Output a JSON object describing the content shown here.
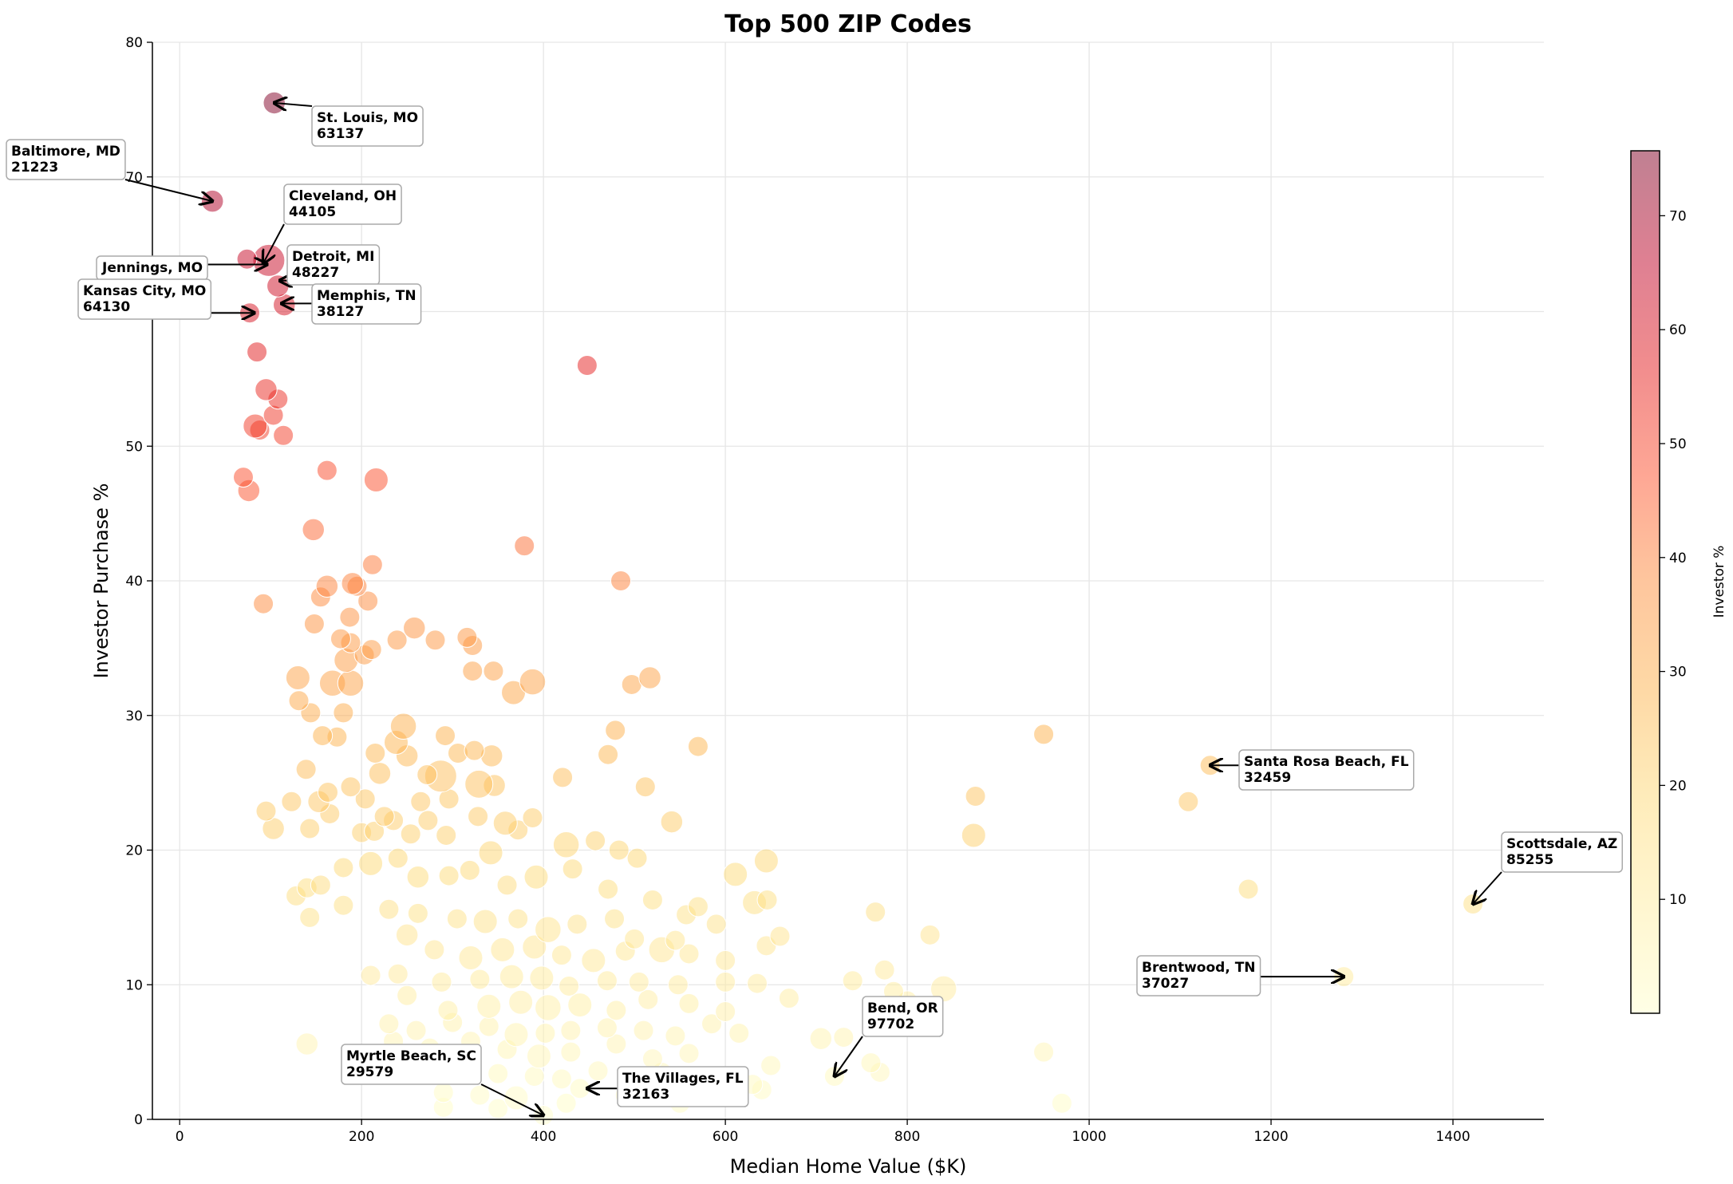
{
  "chart_data": {
    "type": "scatter",
    "title": "Top 500 ZIP Codes",
    "xlabel": "Median Home Value ($K)",
    "ylabel": "Investor Purchase %",
    "xlim": [
      -30,
      1500
    ],
    "ylim": [
      0,
      80
    ],
    "xticks": [
      0,
      200,
      400,
      600,
      800,
      1000,
      1200,
      1400
    ],
    "yticks": [
      0,
      10,
      20,
      30,
      40,
      50,
      60,
      70,
      80
    ],
    "grid": true,
    "colorbar": {
      "label": "Investor %",
      "range": [
        0,
        75.7
      ],
      "ticks": [
        10,
        20,
        30,
        40,
        50,
        60,
        70
      ],
      "colormap": "YlOrRd",
      "alpha": 0.5
    },
    "color_encoding": "Investor % (same as y)",
    "point_format": [
      "median_home_value_k",
      "investor_pct",
      "relative_size"
    ],
    "points": [
      [
        104,
        75.5,
        1.1
      ],
      [
        36,
        68.2,
        1.1
      ],
      [
        98,
        63.8,
        1.6
      ],
      [
        74,
        63.9,
        1
      ],
      [
        108,
        61.9,
        1.1
      ],
      [
        115,
        60.5,
        1.1
      ],
      [
        77,
        59.9,
        1
      ],
      [
        448,
        56,
        1
      ],
      [
        85,
        57,
        1
      ],
      [
        95,
        54.2,
        1.1
      ],
      [
        108,
        53.5,
        1
      ],
      [
        103,
        52.3,
        1
      ],
      [
        83,
        51.5,
        1.2
      ],
      [
        88,
        51.2,
        1
      ],
      [
        114,
        50.8,
        1
      ],
      [
        70,
        47.7,
        1
      ],
      [
        76,
        46.7,
        1.1
      ],
      [
        162,
        48.2,
        1
      ],
      [
        216,
        47.5,
        1.2
      ],
      [
        147,
        43.8,
        1.1
      ],
      [
        379,
        42.6,
        1
      ],
      [
        485,
        40,
        1
      ],
      [
        92,
        38.3,
        1
      ],
      [
        162,
        39.6,
        1.1
      ],
      [
        155,
        38.8,
        1
      ],
      [
        212,
        41.2,
        1
      ],
      [
        190,
        39.8,
        1.1
      ],
      [
        195,
        39.6,
        1
      ],
      [
        187,
        37.3,
        1
      ],
      [
        207,
        38.5,
        1
      ],
      [
        148,
        36.8,
        1
      ],
      [
        258,
        36.5,
        1.1
      ],
      [
        239,
        35.6,
        1
      ],
      [
        281,
        35.6,
        1
      ],
      [
        316,
        35.8,
        1
      ],
      [
        322,
        35.2,
        1
      ],
      [
        177,
        35.7,
        1
      ],
      [
        188,
        35.4,
        1
      ],
      [
        211,
        34.9,
        1
      ],
      [
        183,
        34.1,
        1.2
      ],
      [
        203,
        34.5,
        1
      ],
      [
        345,
        33.3,
        1
      ],
      [
        322,
        33.3,
        1
      ],
      [
        517,
        32.8,
        1.1
      ],
      [
        497,
        32.3,
        1
      ],
      [
        130,
        32.8,
        1.2
      ],
      [
        168,
        32.4,
        1.3
      ],
      [
        188,
        32.4,
        1.3
      ],
      [
        388,
        32.5,
        1.3
      ],
      [
        367,
        31.7,
        1.2
      ],
      [
        131,
        31.1,
        1
      ],
      [
        144,
        30.2,
        1
      ],
      [
        180,
        30.2,
        1
      ],
      [
        246,
        29.2,
        1.3
      ],
      [
        479,
        28.9,
        1
      ],
      [
        292,
        28.5,
        1
      ],
      [
        157,
        28.5,
        1
      ],
      [
        173,
        28.4,
        1
      ],
      [
        238,
        28,
        1.2
      ],
      [
        250,
        27,
        1.1
      ],
      [
        215,
        27.2,
        1
      ],
      [
        324,
        27.4,
        1
      ],
      [
        306,
        27.2,
        1
      ],
      [
        343,
        27,
        1.1
      ],
      [
        471,
        27.1,
        1
      ],
      [
        570,
        27.7,
        1
      ],
      [
        950,
        28.6,
        1
      ],
      [
        1133,
        26.3,
        1
      ],
      [
        139,
        26,
        1
      ],
      [
        220,
        25.7,
        1.1
      ],
      [
        272,
        25.6,
        1
      ],
      [
        287,
        25.5,
        1.6
      ],
      [
        329,
        24.9,
        1.4
      ],
      [
        346,
        24.8,
        1.1
      ],
      [
        421,
        25.4,
        1
      ],
      [
        512,
        24.7,
        1
      ],
      [
        163,
        24.3,
        1
      ],
      [
        188,
        24.7,
        1
      ],
      [
        204,
        23.8,
        1
      ],
      [
        265,
        23.6,
        1
      ],
      [
        296,
        23.8,
        1
      ],
      [
        123,
        23.6,
        1
      ],
      [
        153,
        23.6,
        1.1
      ],
      [
        875,
        24,
        1
      ],
      [
        1109,
        23.6,
        1
      ],
      [
        95,
        22.9,
        1
      ],
      [
        165,
        22.7,
        1
      ],
      [
        225,
        22.5,
        1
      ],
      [
        235,
        22.2,
        1
      ],
      [
        273,
        22.2,
        1
      ],
      [
        328,
        22.5,
        1
      ],
      [
        388,
        22.4,
        1
      ],
      [
        541,
        22.1,
        1.1
      ],
      [
        103,
        21.6,
        1.1
      ],
      [
        143,
        21.6,
        1
      ],
      [
        200,
        21.3,
        1
      ],
      [
        214,
        21.4,
        1
      ],
      [
        254,
        21.2,
        1
      ],
      [
        293,
        21.1,
        1
      ],
      [
        358,
        22,
        1.2
      ],
      [
        372,
        21.5,
        1
      ],
      [
        425,
        20.4,
        1.3
      ],
      [
        457,
        20.7,
        1
      ],
      [
        483,
        20,
        1
      ],
      [
        503,
        19.4,
        1
      ],
      [
        873,
        21.1,
        1.2
      ],
      [
        645,
        19.2,
        1.2
      ],
      [
        611,
        18.2,
        1.2
      ],
      [
        1175,
        17.1,
        1
      ],
      [
        128,
        16.6,
        1
      ],
      [
        140,
        17.2,
        1
      ],
      [
        155,
        17.4,
        1
      ],
      [
        180,
        18.7,
        1
      ],
      [
        210,
        19,
        1.2
      ],
      [
        240,
        19.4,
        1
      ],
      [
        262,
        18,
        1.1
      ],
      [
        296,
        18.1,
        1
      ],
      [
        319,
        18.5,
        1
      ],
      [
        342,
        19.8,
        1.2
      ],
      [
        360,
        17.4,
        1
      ],
      [
        392,
        18,
        1.2
      ],
      [
        432,
        18.6,
        1
      ],
      [
        471,
        17.1,
        1
      ],
      [
        520,
        16.3,
        1
      ],
      [
        557,
        15.2,
        1
      ],
      [
        570,
        15.8,
        1
      ],
      [
        632,
        16.1,
        1.2
      ],
      [
        646,
        16.3,
        1
      ],
      [
        1422,
        16,
        1
      ],
      [
        143,
        15,
        1
      ],
      [
        180,
        15.9,
        1
      ],
      [
        230,
        15.6,
        1
      ],
      [
        262,
        15.3,
        1
      ],
      [
        305,
        14.9,
        1
      ],
      [
        336,
        14.7,
        1.2
      ],
      [
        372,
        14.9,
        1
      ],
      [
        405,
        14.1,
        1.3
      ],
      [
        437,
        14.5,
        1
      ],
      [
        478,
        14.9,
        1
      ],
      [
        500,
        13.4,
        1
      ],
      [
        545,
        13.3,
        1
      ],
      [
        590,
        14.5,
        1
      ],
      [
        660,
        13.6,
        1
      ],
      [
        765,
        15.4,
        1
      ],
      [
        825,
        13.7,
        1
      ],
      [
        250,
        13.7,
        1.1
      ],
      [
        280,
        12.6,
        1
      ],
      [
        320,
        12,
        1.2
      ],
      [
        355,
        12.6,
        1.2
      ],
      [
        390,
        12.8,
        1.2
      ],
      [
        420,
        12.2,
        1
      ],
      [
        455,
        11.8,
        1.2
      ],
      [
        490,
        12.5,
        1
      ],
      [
        530,
        12.6,
        1.3
      ],
      [
        560,
        12.3,
        1
      ],
      [
        600,
        11.8,
        1
      ],
      [
        645,
        12.9,
        1
      ],
      [
        775,
        11.1,
        1
      ],
      [
        210,
        10.7,
        1
      ],
      [
        240,
        10.8,
        1
      ],
      [
        288,
        10.2,
        1
      ],
      [
        330,
        10.4,
        1
      ],
      [
        365,
        10.6,
        1.2
      ],
      [
        398,
        10.5,
        1.2
      ],
      [
        428,
        9.9,
        1
      ],
      [
        470,
        10.3,
        1
      ],
      [
        505,
        10.2,
        1
      ],
      [
        548,
        10,
        1
      ],
      [
        600,
        10.2,
        1
      ],
      [
        635,
        10.1,
        1
      ],
      [
        740,
        10.3,
        1
      ],
      [
        785,
        9.5,
        1
      ],
      [
        840,
        9.7,
        1.3
      ],
      [
        1280,
        10.6,
        1
      ],
      [
        250,
        9.2,
        1
      ],
      [
        295,
        8.1,
        1
      ],
      [
        340,
        8.4,
        1.2
      ],
      [
        375,
        8.7,
        1.2
      ],
      [
        405,
        8.3,
        1.3
      ],
      [
        440,
        8.5,
        1.2
      ],
      [
        480,
        8.1,
        1
      ],
      [
        515,
        8.9,
        1
      ],
      [
        560,
        8.6,
        1
      ],
      [
        600,
        8,
        1
      ],
      [
        670,
        9,
        1
      ],
      [
        800,
        8.8,
        1
      ],
      [
        230,
        7.1,
        1
      ],
      [
        260,
        6.6,
        1
      ],
      [
        300,
        7.2,
        1
      ],
      [
        340,
        6.9,
        1
      ],
      [
        370,
        6.3,
        1.2
      ],
      [
        402,
        6.4,
        1
      ],
      [
        430,
        6.6,
        1
      ],
      [
        470,
        6.8,
        1
      ],
      [
        510,
        6.6,
        1
      ],
      [
        545,
        6.2,
        1
      ],
      [
        585,
        7.1,
        1
      ],
      [
        615,
        6.4,
        1
      ],
      [
        705,
        6,
        1.1
      ],
      [
        730,
        6.1,
        1
      ],
      [
        140,
        5.6,
        1.1
      ],
      [
        235,
        5.8,
        1
      ],
      [
        275,
        5.3,
        1
      ],
      [
        320,
        5.8,
        1
      ],
      [
        360,
        5.2,
        1
      ],
      [
        395,
        4.7,
        1.2
      ],
      [
        430,
        5,
        1
      ],
      [
        480,
        5.6,
        1
      ],
      [
        520,
        4.5,
        1
      ],
      [
        560,
        4.9,
        1
      ],
      [
        650,
        4,
        1
      ],
      [
        760,
        4.2,
        1
      ],
      [
        950,
        5,
        1
      ],
      [
        300,
        3.8,
        1
      ],
      [
        350,
        3.4,
        1
      ],
      [
        390,
        3.2,
        1
      ],
      [
        420,
        3,
        1
      ],
      [
        460,
        3.6,
        1
      ],
      [
        530,
        3.5,
        1
      ],
      [
        630,
        2.6,
        1
      ],
      [
        770,
        3.5,
        1
      ],
      [
        290,
        2,
        1
      ],
      [
        330,
        1.8,
        1
      ],
      [
        370,
        1.6,
        1.2
      ],
      [
        400,
        0.3,
        1
      ],
      [
        440,
        2.3,
        1
      ],
      [
        490,
        1.8,
        1
      ],
      [
        550,
        1.2,
        1
      ],
      [
        640,
        2.2,
        1
      ],
      [
        720,
        3.2,
        1
      ],
      [
        970,
        1.2,
        1
      ],
      [
        290,
        0.9,
        1
      ],
      [
        350,
        0.8,
        1
      ],
      [
        425,
        1.2,
        1
      ]
    ],
    "annotations": [
      {
        "lines": [
          "St. Louis, MO",
          "63137"
        ],
        "x": 104,
        "y": 75.5
      },
      {
        "lines": [
          "Baltimore, MD",
          "21223"
        ],
        "x": 36,
        "y": 68.2
      },
      {
        "lines": [
          "Cleveland, OH",
          "44105"
        ],
        "x": 92,
        "y": 63.6
      },
      {
        "lines": [
          "Jennings, MO"
        ],
        "x": 96,
        "y": 63.5
      },
      {
        "lines": [
          "Detroit, MI",
          "48227"
        ],
        "x": 110,
        "y": 62.3
      },
      {
        "lines": [
          "Kansas City, MO",
          "64130"
        ],
        "x": 82,
        "y": 59.9
      },
      {
        "lines": [
          "Memphis, TN",
          "38127"
        ],
        "x": 112,
        "y": 60.6
      },
      {
        "lines": [
          "Santa Rosa Beach, FL",
          "32459"
        ],
        "x": 1133,
        "y": 26.3
      },
      {
        "lines": [
          "Scottsdale, AZ",
          "85255"
        ],
        "x": 1422,
        "y": 16
      },
      {
        "lines": [
          "Brentwood, TN",
          "37027"
        ],
        "x": 1280,
        "y": 10.6
      },
      {
        "lines": [
          "Bend, OR",
          "97702"
        ],
        "x": 720,
        "y": 3.2
      },
      {
        "lines": [
          "Myrtle Beach, SC",
          "29579"
        ],
        "x": 400,
        "y": 0.3
      },
      {
        "lines": [
          "The Villages, FL",
          "32163"
        ],
        "x": 448,
        "y": 2.3
      }
    ]
  }
}
